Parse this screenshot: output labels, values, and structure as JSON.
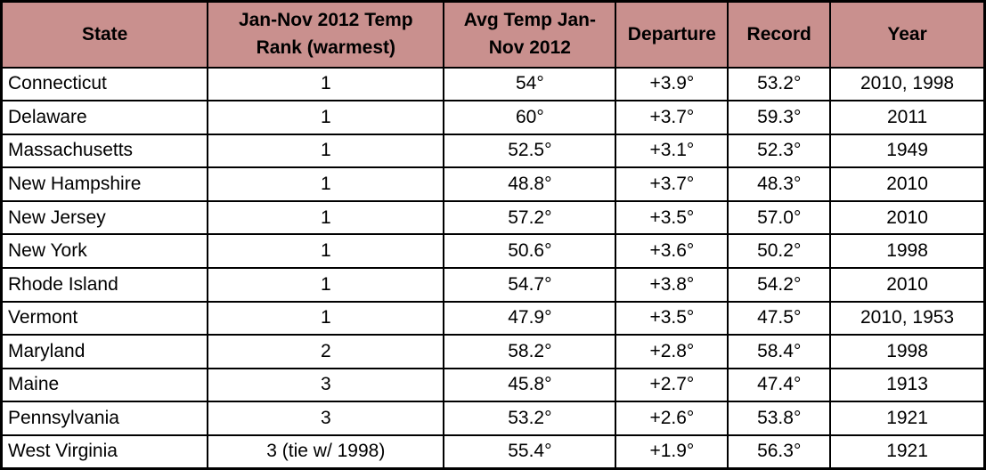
{
  "chart_data": {
    "type": "table",
    "title": "",
    "columns": [
      {
        "key": "state",
        "label": "State"
      },
      {
        "key": "rank",
        "label": "Jan-Nov 2012 Temp\nRank (warmest)"
      },
      {
        "key": "avg-temp",
        "label": "Avg Temp Jan-\nNov 2012"
      },
      {
        "key": "departure",
        "label": "Departure"
      },
      {
        "key": "record",
        "label": "Record"
      },
      {
        "key": "year",
        "label": "Year"
      }
    ],
    "rows": [
      [
        "Connecticut",
        "1",
        "54°",
        "+3.9°",
        "53.2°",
        "2010, 1998"
      ],
      [
        "Delaware",
        "1",
        "60°",
        "+3.7°",
        "59.3°",
        "2011"
      ],
      [
        "Massachusetts",
        "1",
        "52.5°",
        "+3.1°",
        "52.3°",
        "1949"
      ],
      [
        "New Hampshire",
        "1",
        "48.8°",
        "+3.7°",
        "48.3°",
        "2010"
      ],
      [
        "New Jersey",
        "1",
        "57.2°",
        "+3.5°",
        "57.0°",
        "2010"
      ],
      [
        "New York",
        "1",
        "50.6°",
        "+3.6°",
        "50.2°",
        "1998"
      ],
      [
        "Rhode Island",
        "1",
        "54.7°",
        "+3.8°",
        "54.2°",
        "2010"
      ],
      [
        "Vermont",
        "1",
        "47.9°",
        "+3.5°",
        "47.5°",
        "2010, 1953"
      ],
      [
        "Maryland",
        "2",
        "58.2°",
        "+2.8°",
        "58.4°",
        "1998"
      ],
      [
        "Maine",
        "3",
        "45.8°",
        "+2.7°",
        "47.4°",
        "1913"
      ],
      [
        "Pennsylvania",
        "3",
        "53.2°",
        "+2.6°",
        "53.8°",
        "1921"
      ],
      [
        "West Virginia",
        "3 (tie w/ 1998)",
        "55.4°",
        "+1.9°",
        "56.3°",
        "1921"
      ]
    ],
    "colors": {
      "header_bg": "#C9908E",
      "header_text": "#000000",
      "border": "#000000",
      "row_bg": "#FFFFFF"
    },
    "layout": {
      "grid": true,
      "header_rows": 1,
      "data_rows": 12
    }
  }
}
